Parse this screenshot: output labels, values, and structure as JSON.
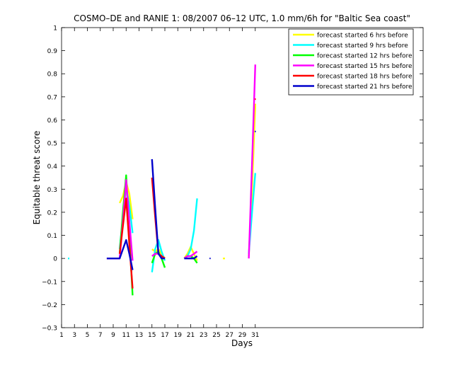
{
  "chart_data": {
    "type": "line",
    "title": "COSMO–DE and RANIE 1: 08/2007 06–12 UTC, 1.0 mm/6h for \"Baltic Sea coast\"",
    "xlabel": "Days",
    "ylabel": "Equitable threat score",
    "xlim": [
      1,
      57
    ],
    "ylim": [
      -0.3,
      1
    ],
    "xticks": [
      1,
      3,
      5,
      7,
      9,
      11,
      13,
      15,
      17,
      19,
      21,
      23,
      25,
      27,
      29,
      31
    ],
    "yticks": [
      -0.3,
      -0.2,
      -0.1,
      0,
      0.1,
      0.2,
      0.3,
      0.4,
      0.5,
      0.6,
      0.7,
      0.8,
      0.9,
      1
    ],
    "ytick_labels": [
      "−0.3",
      "−0.2",
      "−0.1",
      "0",
      "0.1",
      "0.2",
      "0.3",
      "0.4",
      "0.5",
      "0.6",
      "0.7",
      "0.8",
      "0.9",
      "1"
    ],
    "grid": false,
    "legend_position": "top-right",
    "series": [
      {
        "name": "forecast started 6 hrs before",
        "color": "#ffff00",
        "points": [
          [
            10,
            0.24
          ],
          [
            10.5,
            0.27
          ],
          [
            11,
            0.33
          ],
          [
            11.5,
            0.28
          ],
          [
            12,
            0.17
          ],
          [
            15,
            0.04
          ],
          [
            15.5,
            0.03
          ],
          [
            16,
            0.04
          ],
          [
            16.5,
            0.02
          ],
          [
            17,
            0.0
          ],
          [
            20,
            0.0
          ],
          [
            20.5,
            0.02
          ],
          [
            21,
            0.05
          ],
          [
            21.5,
            0.02
          ],
          [
            22,
            -0.01
          ],
          [
            26,
            0.0
          ],
          [
            26.3,
            0.0
          ],
          [
            30,
            0.01
          ],
          [
            30.5,
            0.3
          ],
          [
            31,
            0.67
          ]
        ]
      },
      {
        "name": "forecast started 9 hrs before",
        "color": "#00ffff",
        "points": [
          [
            2,
            0.0
          ],
          [
            2.2,
            0.0
          ],
          [
            10,
            0.04
          ],
          [
            10.5,
            0.18
          ],
          [
            11,
            0.31
          ],
          [
            11.5,
            0.23
          ],
          [
            12,
            0.11
          ],
          [
            15,
            -0.06
          ],
          [
            15.5,
            0.04
          ],
          [
            16,
            0.08
          ],
          [
            16.5,
            0.03
          ],
          [
            17,
            -0.01
          ],
          [
            20,
            0.0
          ],
          [
            20.5,
            0.01
          ],
          [
            21,
            0.04
          ],
          [
            21.5,
            0.12
          ],
          [
            22,
            0.26
          ],
          [
            30,
            0.02
          ],
          [
            30.5,
            0.2
          ],
          [
            31,
            0.37
          ]
        ]
      },
      {
        "name": "forecast started 12 hrs before",
        "color": "#00ff00",
        "points": [
          [
            10,
            0.02
          ],
          [
            10.5,
            0.2
          ],
          [
            11,
            0.36
          ],
          [
            11.5,
            0.1
          ],
          [
            12,
            -0.16
          ],
          [
            15,
            -0.02
          ],
          [
            15.5,
            0.02
          ],
          [
            16,
            0.03
          ],
          [
            16.5,
            0.0
          ],
          [
            17,
            -0.04
          ],
          [
            20,
            0.0
          ],
          [
            20.5,
            0.01
          ],
          [
            21,
            0.01
          ],
          [
            21.5,
            0.0
          ],
          [
            22,
            -0.02
          ]
        ]
      },
      {
        "name": "forecast started 15 hrs before",
        "color": "#ff00ff",
        "points": [
          [
            8,
            0.0
          ],
          [
            9,
            0.0
          ],
          [
            10,
            0.0
          ],
          [
            10.5,
            0.16
          ],
          [
            11,
            0.34
          ],
          [
            11.5,
            0.16
          ],
          [
            12,
            -0.01
          ],
          [
            15,
            0.01
          ],
          [
            15.5,
            0.02
          ],
          [
            16,
            0.02
          ],
          [
            16.5,
            0.01
          ],
          [
            17,
            0.0
          ],
          [
            20,
            0.0
          ],
          [
            20.5,
            0.01
          ],
          [
            21,
            0.01
          ],
          [
            21.5,
            0.02
          ],
          [
            22,
            0.03
          ],
          [
            30,
            0.0
          ],
          [
            30.5,
            0.41
          ],
          [
            31,
            0.84
          ]
        ]
      },
      {
        "name": "forecast started 18 hrs before",
        "color": "#ff0000",
        "points": [
          [
            10,
            0.02
          ],
          [
            10.5,
            0.14
          ],
          [
            11,
            0.26
          ],
          [
            11.5,
            0.06
          ],
          [
            12,
            -0.13
          ],
          [
            15,
            0.35
          ],
          [
            15.5,
            0.18
          ],
          [
            16,
            0.02
          ],
          [
            16.5,
            0.01
          ],
          [
            17,
            0.0
          ],
          [
            31,
            0.69
          ]
        ]
      },
      {
        "name": "forecast started 21 hrs before",
        "color": "#0000cc",
        "points": [
          [
            8,
            0.0
          ],
          [
            9,
            0.0
          ],
          [
            10,
            0.0
          ],
          [
            10.5,
            0.04
          ],
          [
            11,
            0.08
          ],
          [
            11.5,
            0.02
          ],
          [
            12,
            -0.05
          ],
          [
            15,
            0.43
          ],
          [
            15.5,
            0.22
          ],
          [
            16,
            0.02
          ],
          [
            16.5,
            0.0
          ],
          [
            17,
            0.0
          ],
          [
            20,
            0.0
          ],
          [
            20.5,
            0.0
          ],
          [
            21,
            0.0
          ],
          [
            21.5,
            0.0
          ],
          [
            22,
            0.01
          ],
          [
            24,
            0.0
          ],
          [
            31,
            0.55
          ]
        ]
      }
    ]
  }
}
